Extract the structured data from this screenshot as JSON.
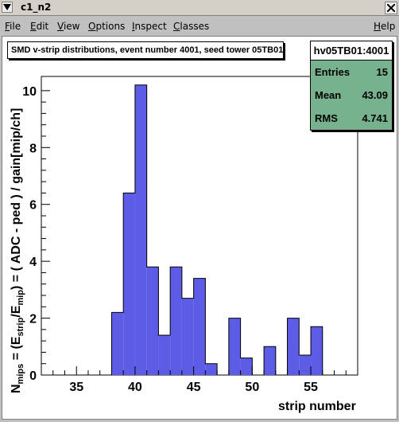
{
  "window": {
    "title": "c1_n2"
  },
  "menu": {
    "items": [
      {
        "label": "File",
        "mnemonic": "F",
        "rest": "ile"
      },
      {
        "label": "Edit",
        "mnemonic": "E",
        "rest": "dit"
      },
      {
        "label": "View",
        "mnemonic": "V",
        "rest": "iew"
      },
      {
        "label": "Options",
        "mnemonic": "O",
        "rest": "ptions"
      },
      {
        "label": "Inspect",
        "mnemonic": "I",
        "rest": "nspect"
      },
      {
        "label": "Classes",
        "mnemonic": "C",
        "rest": "lasses"
      }
    ],
    "help": {
      "label": "Help",
      "mnemonic": "H",
      "rest": "elp"
    }
  },
  "canvas": {
    "title": "SMD v-strip distributions, event number 4001, seed tower 05TB01"
  },
  "stats": {
    "name": "hv05TB01:4001",
    "rows": [
      {
        "key": "Entries",
        "value": "15"
      },
      {
        "key": "Mean",
        "value": "43.09"
      },
      {
        "key": "RMS",
        "value": "4.741"
      }
    ]
  },
  "colors": {
    "fill": "#5c5ce6",
    "stats_bg": "#77b28e",
    "window_bg": "#c0c0c0"
  },
  "chart_data": {
    "type": "bar",
    "title": "SMD v-strip distributions, event number 4001, seed tower 05TB01",
    "xlabel": "strip number",
    "ylabel": "N_mips = (E_strip/E_mip) = ( ADC - ped ) / gain[mip/ch]",
    "xlim": [
      32,
      59
    ],
    "ylim": [
      0,
      10.5
    ],
    "xticks": [
      35,
      40,
      45,
      50,
      55
    ],
    "yticks": [
      0,
      2,
      4,
      6,
      8,
      10
    ],
    "bins": [
      {
        "x": 38,
        "value": 2.2
      },
      {
        "x": 39,
        "value": 6.4
      },
      {
        "x": 40,
        "value": 10.2
      },
      {
        "x": 41,
        "value": 3.8
      },
      {
        "x": 42,
        "value": 1.4
      },
      {
        "x": 43,
        "value": 3.8
      },
      {
        "x": 44,
        "value": 2.7
      },
      {
        "x": 45,
        "value": 3.4
      },
      {
        "x": 46,
        "value": 0.4
      },
      {
        "x": 47,
        "value": 0
      },
      {
        "x": 48,
        "value": 2.0
      },
      {
        "x": 49,
        "value": 0.6
      },
      {
        "x": 50,
        "value": 0
      },
      {
        "x": 51,
        "value": 1.0
      },
      {
        "x": 52,
        "value": 0
      },
      {
        "x": 53,
        "value": 2.0
      },
      {
        "x": 54,
        "value": 0.7
      },
      {
        "x": 55,
        "value": 1.7
      }
    ]
  }
}
